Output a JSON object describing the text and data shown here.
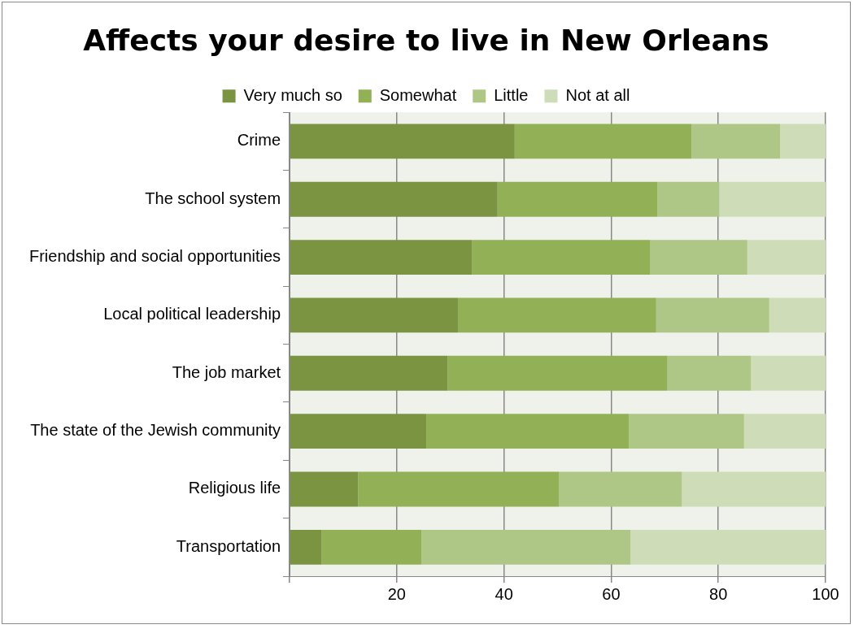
{
  "chart_data": {
    "type": "bar",
    "orientation": "horizontal",
    "stacked": true,
    "title": "Affects your desire to live in New Orleans",
    "categories": [
      "Crime",
      "The school system",
      "Friendship and social opportunities",
      "Local political leadership",
      "The job market",
      "The state of the Jewish community",
      "Religious life",
      "Transportation"
    ],
    "series": [
      {
        "name": "Very much so",
        "color": "#7a9442",
        "values": [
          42,
          38.8,
          34,
          31.4,
          29.5,
          25.5,
          12.8,
          6
        ]
      },
      {
        "name": "Somewhat",
        "color": "#92b055",
        "values": [
          33,
          29.8,
          33.3,
          37,
          41,
          37.8,
          37.5,
          18.6
        ]
      },
      {
        "name": "Little",
        "color": "#aec786",
        "values": [
          16.5,
          11.6,
          18.1,
          21.1,
          15.6,
          21.5,
          22.9,
          39
        ]
      },
      {
        "name": "Not at all",
        "color": "#cfdcb8",
        "values": [
          8.5,
          19.8,
          14.6,
          10.5,
          13.9,
          15.2,
          26.8,
          36.4
        ]
      }
    ],
    "xlim": [
      0,
      100
    ],
    "xticks": [
      {
        "value": 0,
        "label": null
      },
      20,
      40,
      60,
      80,
      100
    ],
    "grid": "x",
    "legend": "top"
  }
}
